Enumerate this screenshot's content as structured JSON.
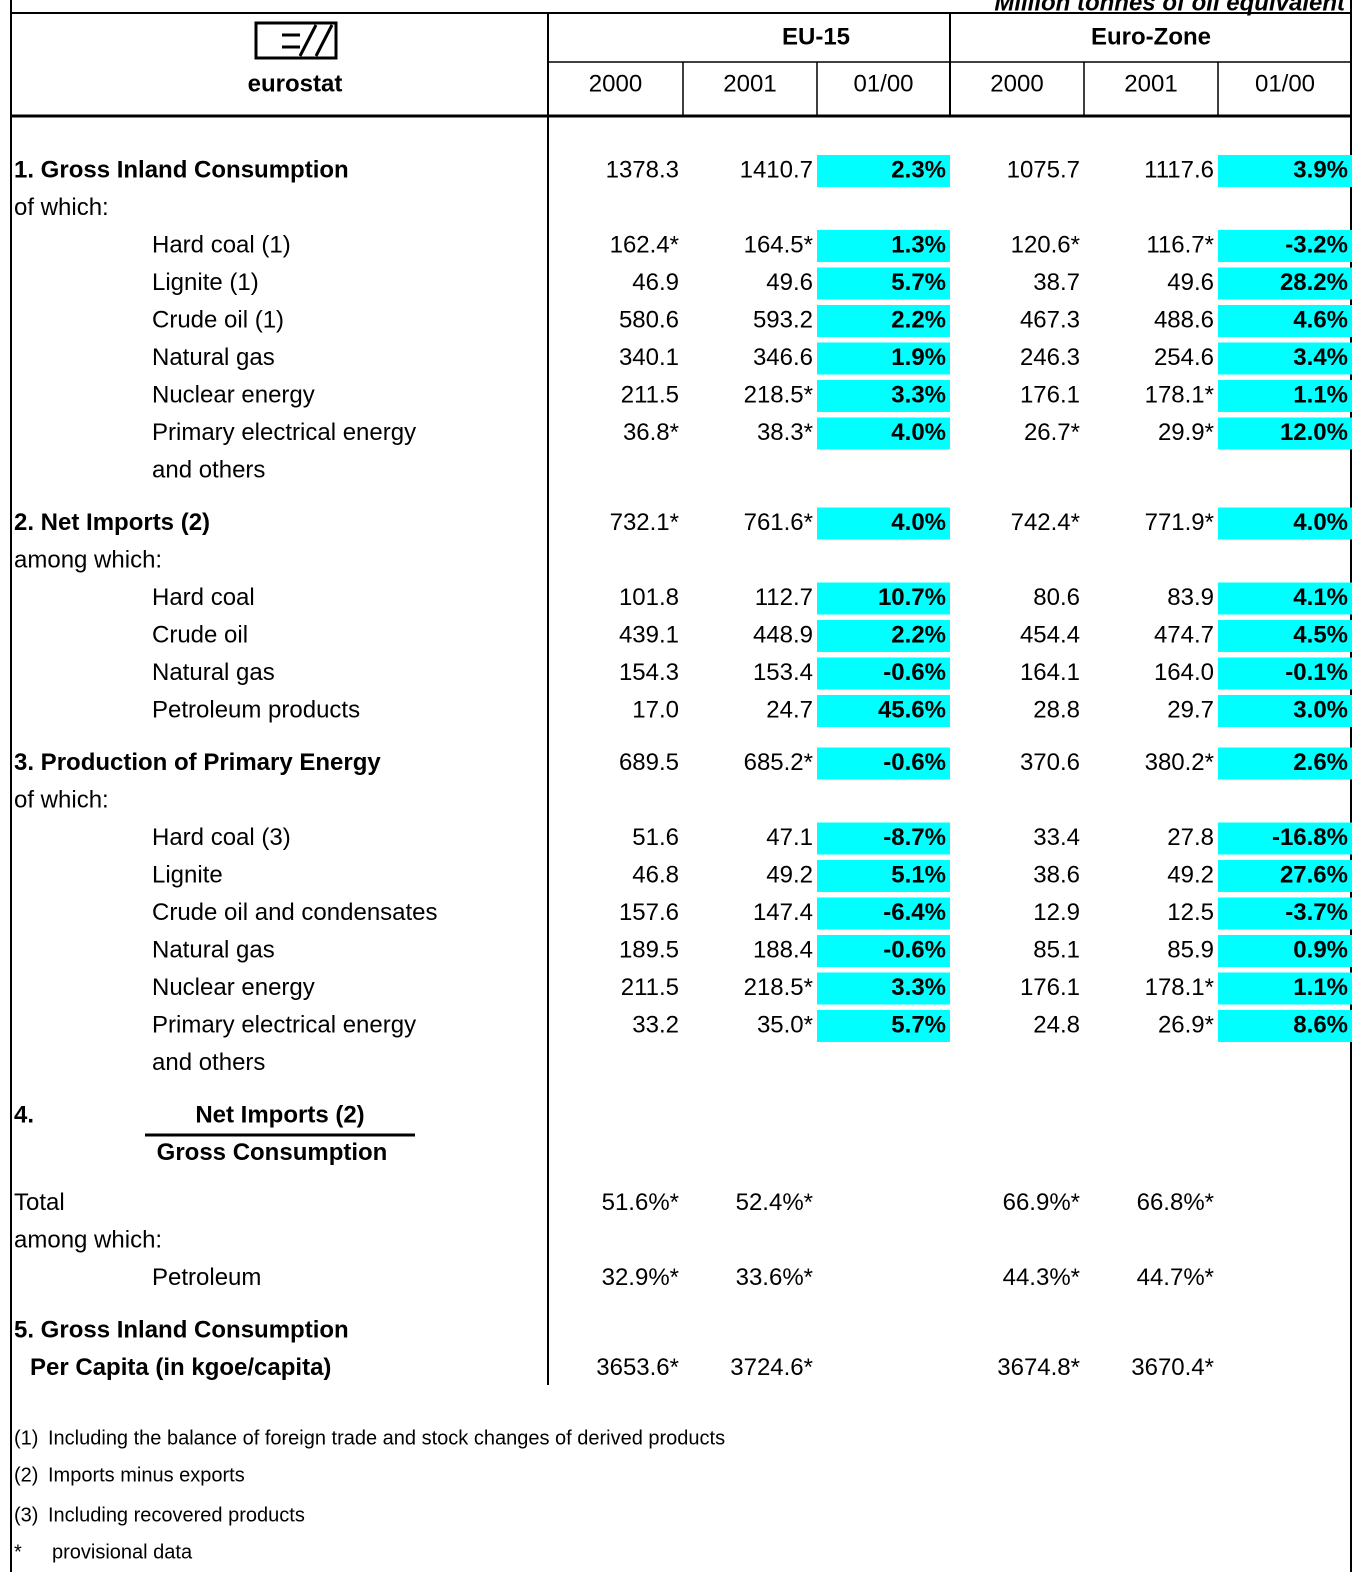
{
  "unit": "Million tonnes of oil equivalent",
  "logo": "eurostat",
  "groups": [
    "EU-15",
    "Euro-Zone"
  ],
  "columns": [
    "2000",
    "2001",
    "01/00",
    "2000",
    "2001",
    "01/00"
  ],
  "sections": [
    {
      "heading": "1. Gross Inland Consumption",
      "cells": [
        "1378.3",
        "1410.7",
        "2.3%",
        "1075.7",
        "1117.6",
        "3.9%"
      ],
      "subheading": "of which:",
      "items": [
        {
          "label": [
            "Hard coal (1)"
          ],
          "cells": [
            "162.4*",
            "164.5*",
            "1.3%",
            "120.6*",
            "116.7*",
            "-3.2%"
          ]
        },
        {
          "label": [
            "Lignite  (1)"
          ],
          "cells": [
            "46.9",
            "49.6",
            "5.7%",
            "38.7",
            "49.6",
            "28.2%"
          ]
        },
        {
          "label": [
            "Crude oil (1)"
          ],
          "cells": [
            "580.6",
            "593.2",
            "2.2%",
            "467.3",
            "488.6",
            "4.6%"
          ]
        },
        {
          "label": [
            "Natural gas"
          ],
          "cells": [
            "340.1",
            "346.6",
            "1.9%",
            "246.3",
            "254.6",
            "3.4%"
          ]
        },
        {
          "label": [
            "Nuclear energy"
          ],
          "cells": [
            "211.5",
            "218.5*",
            "3.3%",
            "176.1",
            "178.1*",
            "1.1%"
          ]
        },
        {
          "label": [
            "Primary electrical energy",
            "and others"
          ],
          "cells": [
            "36.8*",
            "38.3*",
            "4.0%",
            "26.7*",
            "29.9*",
            "12.0%"
          ]
        }
      ]
    },
    {
      "heading": "2. Net Imports (2)",
      "cells": [
        "732.1*",
        "761.6*",
        "4.0%",
        "742.4*",
        "771.9*",
        "4.0%"
      ],
      "subheading": "among which:",
      "items": [
        {
          "label": [
            "Hard coal"
          ],
          "cells": [
            "101.8",
            "112.7",
            "10.7%",
            "80.6",
            "83.9",
            "4.1%"
          ]
        },
        {
          "label": [
            "Crude oil"
          ],
          "cells": [
            "439.1",
            "448.9",
            "2.2%",
            "454.4",
            "474.7",
            "4.5%"
          ]
        },
        {
          "label": [
            "Natural gas"
          ],
          "cells": [
            "154.3",
            "153.4",
            "-0.6%",
            "164.1",
            "164.0",
            "-0.1%"
          ]
        },
        {
          "label": [
            "Petroleum products"
          ],
          "cells": [
            "17.0",
            "24.7",
            "45.6%",
            "28.8",
            "29.7",
            "3.0%"
          ]
        }
      ]
    },
    {
      "heading": "3. Production of Primary Energy",
      "cells": [
        "689.5",
        "685.2*",
        "-0.6%",
        "370.6",
        "380.2*",
        "2.6%"
      ],
      "subheading": "of which:",
      "items": [
        {
          "label": [
            "Hard coal (3)"
          ],
          "cells": [
            "51.6",
            "47.1",
            "-8.7%",
            "33.4",
            "27.8",
            "-16.8%"
          ]
        },
        {
          "label": [
            "Lignite"
          ],
          "cells": [
            "46.8",
            "49.2",
            "5.1%",
            "38.6",
            "49.2",
            "27.6%"
          ]
        },
        {
          "label": [
            "Crude oil and condensates"
          ],
          "cells": [
            "157.6",
            "147.4",
            "-6.4%",
            "12.9",
            "12.5",
            "-3.7%"
          ]
        },
        {
          "label": [
            "Natural gas"
          ],
          "cells": [
            "189.5",
            "188.4",
            "-0.6%",
            "85.1",
            "85.9",
            "0.9%"
          ]
        },
        {
          "label": [
            "Nuclear energy"
          ],
          "cells": [
            "211.5",
            "218.5*",
            "3.3%",
            "176.1",
            "178.1*",
            "1.1%"
          ]
        },
        {
          "label": [
            "Primary electrical energy",
            "and others"
          ],
          "cells": [
            "33.2",
            "35.0*",
            "5.7%",
            "24.8",
            "26.9*",
            "8.6%"
          ]
        }
      ]
    }
  ],
  "ratio": {
    "number": "4.",
    "numerator": "Net Imports (2)",
    "denominator": "Gross Consumption",
    "total": {
      "label": "Total",
      "cells": [
        "51.6%*",
        "52.4%*",
        "66.9%*",
        "66.8%*"
      ]
    },
    "subheading": "among which:",
    "items": [
      {
        "label": "Petroleum",
        "cells": [
          "32.9%*",
          "33.6%*",
          "44.3%*",
          "44.7%*"
        ]
      }
    ]
  },
  "per_capita": {
    "heading": [
      "5. Gross Inland Consumption",
      "Per Capita (in kgoe/capita)"
    ],
    "cells": [
      "3653.6*",
      "3724.6*",
      "3674.8*",
      "3670.4*"
    ]
  },
  "footnotes": [
    {
      "mark": "(1)",
      "text": "Including the balance of foreign trade and stock changes of derived products"
    },
    {
      "mark": "(2)",
      "text": "Imports minus exports"
    },
    {
      "mark": "(3)",
      "text": "Including recovered products"
    },
    {
      "mark": "*",
      "text": "provisional data"
    }
  ]
}
